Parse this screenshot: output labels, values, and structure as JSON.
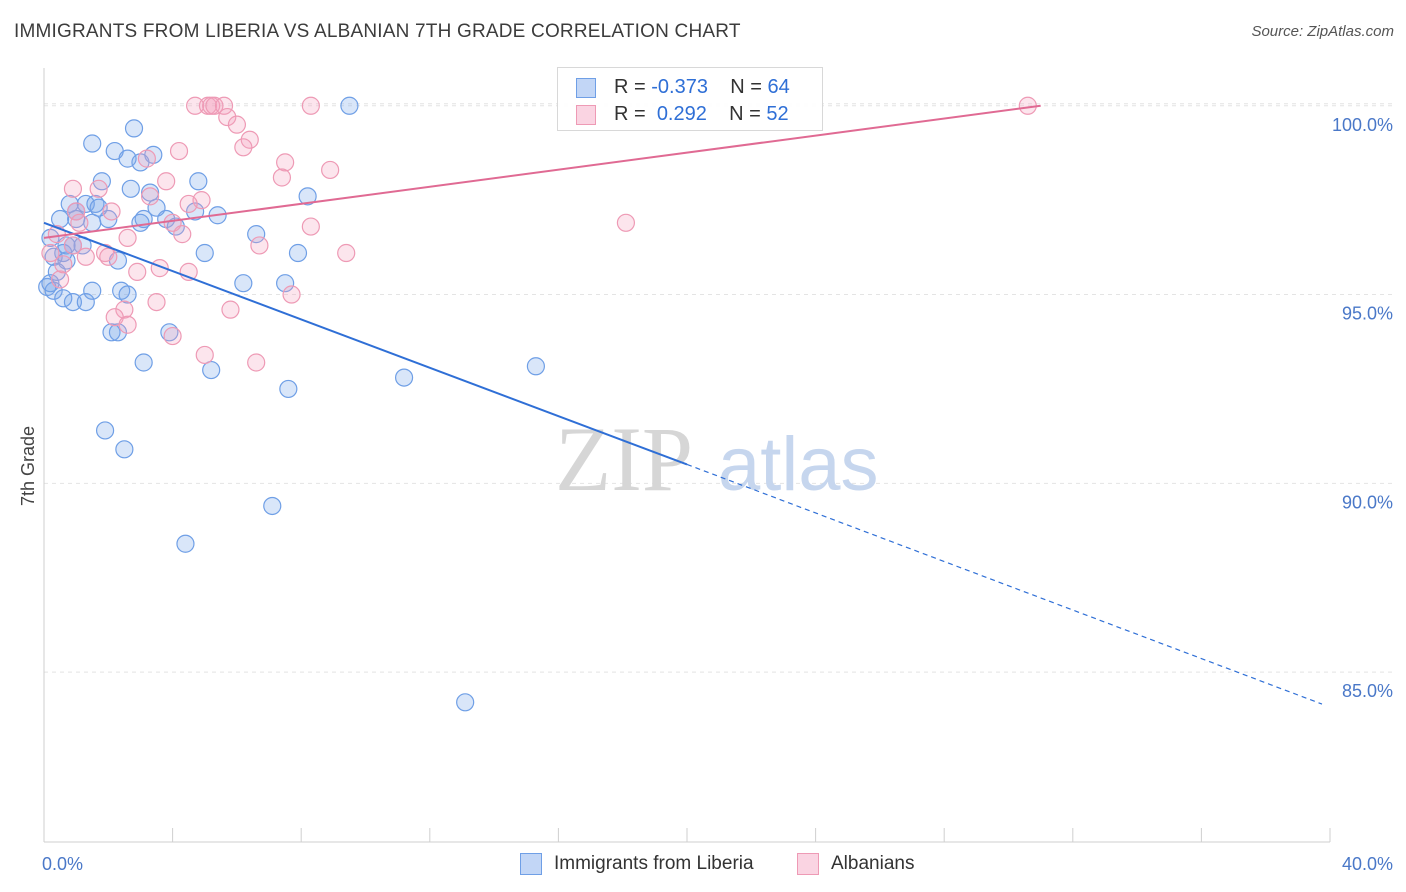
{
  "title": "IMMIGRANTS FROM LIBERIA VS ALBANIAN 7TH GRADE CORRELATION CHART",
  "source": "Source: ZipAtlas.com",
  "watermark": {
    "zip": "ZIP",
    "atlas": "atlas"
  },
  "legend": {
    "rows": [
      {
        "r_label": "R =",
        "r_value": "-0.373",
        "n_label": "N =",
        "n_value": "64"
      },
      {
        "r_label": "R =",
        "r_value": "0.292",
        "n_label": "N =",
        "n_value": "52"
      }
    ]
  },
  "colors": {
    "blue": "#6f9fe6",
    "blue_fill": "rgba(120,165,235,0.28)",
    "blue_line": "#2f6fd6",
    "pink": "#ee9ab5",
    "pink_fill": "rgba(245,160,190,0.28)",
    "pink_line": "#e06a93",
    "tick": "#4a78c8"
  },
  "chart_data": {
    "type": "scatter",
    "title": "IMMIGRANTS FROM LIBERIA VS ALBANIAN 7TH GRADE CORRELATION CHART",
    "xlabel": "",
    "ylabel": "7th Grade",
    "xlim": [
      0,
      40
    ],
    "ylim": [
      80.5,
      101.0
    ],
    "x_tick_labels": [
      "0.0%",
      "40.0%"
    ],
    "y_ticks": [
      85,
      90,
      95,
      100
    ],
    "y_tick_labels": [
      "85.0%",
      "90.0%",
      "95.0%",
      "100.0%"
    ],
    "series": [
      {
        "name": "Immigrants from Liberia",
        "color": "blue",
        "R": -0.373,
        "N": 64,
        "trend": {
          "x0": 0,
          "y0": 96.9,
          "x1": 20,
          "y1": 90.5,
          "dashed_to_x": 40,
          "dashed_to_y": 84.1
        },
        "points": [
          [
            9.5,
            100.0
          ],
          [
            1.5,
            99.0
          ],
          [
            2.8,
            99.4
          ],
          [
            2.2,
            98.8
          ],
          [
            2.6,
            98.6
          ],
          [
            3.4,
            98.7
          ],
          [
            3.0,
            98.5
          ],
          [
            1.8,
            98.0
          ],
          [
            4.8,
            98.0
          ],
          [
            2.7,
            97.8
          ],
          [
            3.3,
            97.7
          ],
          [
            8.2,
            97.6
          ],
          [
            0.8,
            97.4
          ],
          [
            1.3,
            97.4
          ],
          [
            1.6,
            97.4
          ],
          [
            3.5,
            97.3
          ],
          [
            1.0,
            97.2
          ],
          [
            4.7,
            97.2
          ],
          [
            5.4,
            97.1
          ],
          [
            0.5,
            97.0
          ],
          [
            3.1,
            97.0
          ],
          [
            3.8,
            97.0
          ],
          [
            1.0,
            97.0
          ],
          [
            1.5,
            96.9
          ],
          [
            2.0,
            97.0
          ],
          [
            3.0,
            96.9
          ],
          [
            4.1,
            96.8
          ],
          [
            6.6,
            96.6
          ],
          [
            0.7,
            96.3
          ],
          [
            1.2,
            96.3
          ],
          [
            0.9,
            96.3
          ],
          [
            5.0,
            96.1
          ],
          [
            7.9,
            96.1
          ],
          [
            0.3,
            96.0
          ],
          [
            0.7,
            95.9
          ],
          [
            2.3,
            95.9
          ],
          [
            0.4,
            95.6
          ],
          [
            6.2,
            95.3
          ],
          [
            7.5,
            95.3
          ],
          [
            0.1,
            95.2
          ],
          [
            0.3,
            95.1
          ],
          [
            1.5,
            95.1
          ],
          [
            2.4,
            95.1
          ],
          [
            2.6,
            95.0
          ],
          [
            0.6,
            94.9
          ],
          [
            0.9,
            94.8
          ],
          [
            1.3,
            94.8
          ],
          [
            2.1,
            94.0
          ],
          [
            2.3,
            94.0
          ],
          [
            3.9,
            94.0
          ],
          [
            3.1,
            93.2
          ],
          [
            5.2,
            93.0
          ],
          [
            11.2,
            92.8
          ],
          [
            7.6,
            92.5
          ],
          [
            15.3,
            93.1
          ],
          [
            1.9,
            91.4
          ],
          [
            2.5,
            90.9
          ],
          [
            7.1,
            89.4
          ],
          [
            4.4,
            88.4
          ],
          [
            13.1,
            84.2
          ],
          [
            0.2,
            96.5
          ],
          [
            1.7,
            97.3
          ],
          [
            0.6,
            96.1
          ],
          [
            0.2,
            95.3
          ]
        ]
      },
      {
        "name": "Albanians",
        "color": "pink",
        "R": 0.292,
        "N": 52,
        "trend": {
          "x0": 0,
          "y0": 96.5,
          "x1": 31,
          "y1": 100.0
        },
        "points": [
          [
            4.7,
            100.0
          ],
          [
            5.1,
            100.0
          ],
          [
            5.2,
            100.0
          ],
          [
            5.3,
            100.0
          ],
          [
            5.6,
            100.0
          ],
          [
            8.3,
            100.0
          ],
          [
            30.6,
            100.0
          ],
          [
            5.7,
            99.7
          ],
          [
            6.0,
            99.5
          ],
          [
            6.4,
            99.1
          ],
          [
            6.2,
            98.9
          ],
          [
            4.2,
            98.8
          ],
          [
            3.2,
            98.6
          ],
          [
            7.5,
            98.5
          ],
          [
            8.9,
            98.3
          ],
          [
            7.4,
            98.1
          ],
          [
            3.8,
            98.0
          ],
          [
            0.9,
            97.8
          ],
          [
            1.7,
            97.8
          ],
          [
            3.3,
            97.6
          ],
          [
            4.9,
            97.5
          ],
          [
            4.5,
            97.4
          ],
          [
            1.0,
            97.2
          ],
          [
            2.1,
            97.2
          ],
          [
            4.0,
            96.9
          ],
          [
            8.3,
            96.8
          ],
          [
            18.1,
            96.9
          ],
          [
            4.3,
            96.6
          ],
          [
            2.6,
            96.5
          ],
          [
            0.9,
            96.3
          ],
          [
            6.7,
            96.3
          ],
          [
            9.4,
            96.1
          ],
          [
            1.3,
            96.0
          ],
          [
            1.9,
            96.1
          ],
          [
            2.0,
            96.0
          ],
          [
            0.2,
            96.1
          ],
          [
            3.6,
            95.7
          ],
          [
            4.5,
            95.6
          ],
          [
            2.9,
            95.6
          ],
          [
            0.5,
            95.4
          ],
          [
            7.7,
            95.0
          ],
          [
            3.5,
            94.8
          ],
          [
            2.5,
            94.6
          ],
          [
            5.8,
            94.6
          ],
          [
            2.2,
            94.4
          ],
          [
            2.6,
            94.2
          ],
          [
            4.0,
            93.9
          ],
          [
            5.0,
            93.4
          ],
          [
            6.6,
            93.2
          ],
          [
            1.1,
            96.9
          ],
          [
            0.4,
            96.6
          ],
          [
            0.6,
            95.8
          ]
        ]
      }
    ]
  },
  "bottom_legend": [
    {
      "label": "Immigrants from Liberia",
      "color": "blue"
    },
    {
      "label": "Albanians",
      "color": "pink"
    }
  ]
}
